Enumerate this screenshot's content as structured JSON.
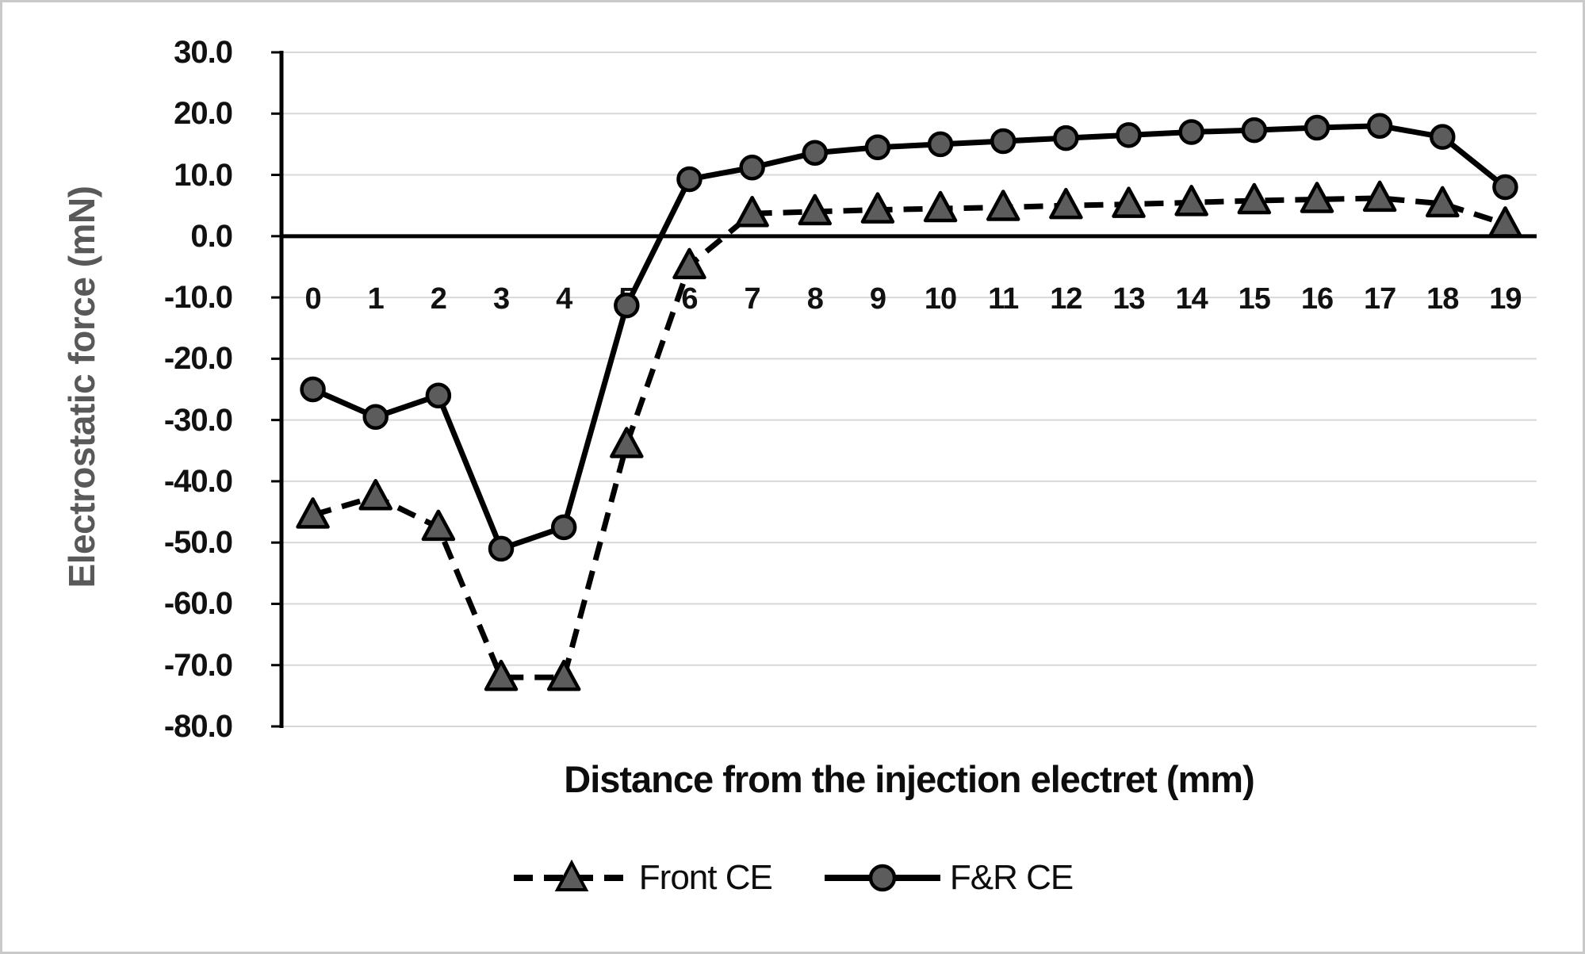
{
  "figure": {
    "background": "#ffffff",
    "border_color": "#c9c9c9"
  },
  "chart_data": {
    "type": "line",
    "title": "",
    "xlabel": "Distance from the injection electret (mm)",
    "ylabel": "Electrostatic force (mN)",
    "categories": [
      "0",
      "1",
      "2",
      "3",
      "4",
      "5",
      "6",
      "7",
      "8",
      "9",
      "10",
      "11",
      "12",
      "13",
      "14",
      "15",
      "16",
      "17",
      "18",
      "19"
    ],
    "series": [
      {
        "name": "Front CE",
        "line_style": "dashed",
        "marker": "triangle",
        "line_color": "#000000",
        "marker_fill": "#5c5c5c",
        "values": [
          -45.5,
          -42.5,
          -47.5,
          -72,
          -72,
          -34,
          -4.8,
          3.7,
          4.0,
          4.3,
          4.5,
          4.7,
          5.0,
          5.2,
          5.5,
          5.8,
          6.0,
          6.2,
          5.3,
          2.0
        ]
      },
      {
        "name": "F&R CE",
        "line_style": "solid",
        "marker": "circle",
        "line_color": "#000000",
        "marker_fill": "#5c5c5c",
        "values": [
          -25,
          -29.5,
          -26,
          -51,
          -47.5,
          -11.3,
          9.3,
          11.2,
          13.6,
          14.5,
          15.0,
          15.5,
          16.0,
          16.5,
          17.0,
          17.3,
          17.7,
          18.0,
          16.2,
          8.0
        ]
      }
    ],
    "ylim": [
      -80,
      30
    ],
    "ytick_interval": 10,
    "ytick_labels": [
      "30.0",
      "20.0",
      "10.0",
      "0.0",
      "-10.0",
      "-20.0",
      "-30.0",
      "-40.0",
      "-50.0",
      "-60.0",
      "-70.0",
      "-80.0"
    ],
    "x_tick_label_row_value": -10.5,
    "grid": true,
    "legend_position": "bottom-center",
    "colors": {
      "gridline": "#d8d8d8",
      "zero_line": "#000000",
      "axis_line": "#000000",
      "tick_text": "#111111",
      "ylabel_text": "#595959",
      "xlabel_text": "#0d0d0d",
      "marker_fill": "#5c5c5c",
      "line": "#000000"
    }
  }
}
